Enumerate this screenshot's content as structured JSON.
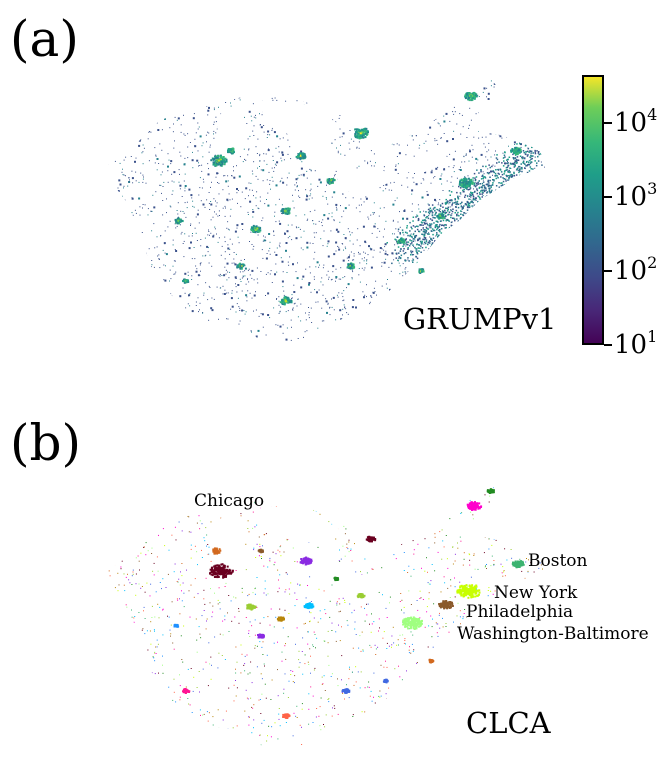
{
  "panel_a": {
    "label": "(a)",
    "dataset": "GRUMPv1",
    "colorbar": {
      "colormap": "viridis",
      "scale": "log",
      "range": [
        10,
        45000
      ],
      "ticks": [
        {
          "base": "10",
          "exp": "1",
          "value": 10
        },
        {
          "base": "10",
          "exp": "2",
          "value": 100
        },
        {
          "base": "10",
          "exp": "3",
          "value": 1000
        },
        {
          "base": "10",
          "exp": "4",
          "value": 10000
        }
      ]
    }
  },
  "panel_b": {
    "label": "(b)",
    "dataset": "CLCA",
    "cities": {
      "chicago": "Chicago",
      "boston": "Boston",
      "new_york": "New York",
      "philadelphia": "Philadelphia",
      "washington": "Washington-Baltimore"
    },
    "cluster_colors": [
      "#6a0020",
      "#ff00cc",
      "#c8ff00",
      "#a0ff80",
      "#8b5a2b",
      "#3cb371",
      "#d2691e",
      "#00bfff",
      "#8a2be2",
      "#ff6347",
      "#228b22",
      "#1e90ff",
      "#ff1493",
      "#9acd32",
      "#b8860b",
      "#4169e1"
    ]
  }
}
